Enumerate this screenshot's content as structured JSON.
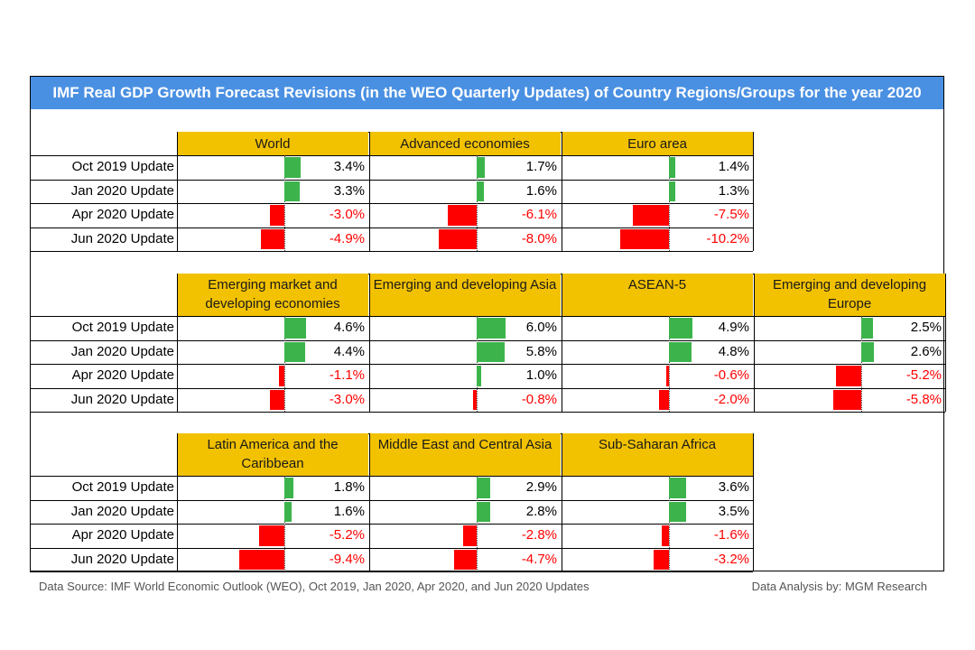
{
  "title": "IMF Real GDP Growth Forecast Revisions (in the WEO Quarterly Updates) of Country Regions/Groups for the year 2020",
  "row_labels": [
    "Oct 2019 Update",
    "Jan 2020 Update",
    "Apr 2020 Update",
    "Jun 2020 Update"
  ],
  "colors": {
    "header": "#f2c100",
    "title_bg": "#4a90e2",
    "positive": "#3cb44b",
    "negative": "#ff0000"
  },
  "chart_data": {
    "type": "table",
    "unit": "%",
    "panels": [
      {
        "blocks": [
          {
            "name": "World",
            "values": [
              3.4,
              3.3,
              -3.0,
              -4.9
            ],
            "labels": [
              "3.4%",
              "3.3%",
              "-3.0%",
              "-4.9%"
            ]
          },
          {
            "name": "Advanced economies",
            "values": [
              1.7,
              1.6,
              -6.1,
              -8.0
            ],
            "labels": [
              "1.7%",
              "1.6%",
              "-6.1%",
              "-8.0%"
            ]
          },
          {
            "name": "Euro area",
            "values": [
              1.4,
              1.3,
              -7.5,
              -10.2
            ],
            "labels": [
              "1.4%",
              "1.3%",
              "-7.5%",
              "-10.2%"
            ]
          }
        ]
      },
      {
        "blocks": [
          {
            "name": "Emerging market and developing economies",
            "values": [
              4.6,
              4.4,
              -1.1,
              -3.0
            ],
            "labels": [
              "4.6%",
              "4.4%",
              "-1.1%",
              "-3.0%"
            ]
          },
          {
            "name": "Emerging and developing Asia",
            "values": [
              6.0,
              5.8,
              1.0,
              -0.8
            ],
            "labels": [
              "6.0%",
              "5.8%",
              "1.0%",
              "-0.8%"
            ]
          },
          {
            "name": "ASEAN-5",
            "values": [
              4.9,
              4.8,
              -0.6,
              -2.0
            ],
            "labels": [
              "4.9%",
              "4.8%",
              "-0.6%",
              "-2.0%"
            ]
          },
          {
            "name": "Emerging and developing Europe",
            "values": [
              2.5,
              2.6,
              -5.2,
              -5.8
            ],
            "labels": [
              "2.5%",
              "2.6%",
              "-5.2%",
              "-5.8%"
            ]
          }
        ]
      },
      {
        "blocks": [
          {
            "name": "Latin America and the Caribbean",
            "values": [
              1.8,
              1.6,
              -5.2,
              -9.4
            ],
            "labels": [
              "1.8%",
              "1.6%",
              "-5.2%",
              "-9.4%"
            ]
          },
          {
            "name": "Middle East and Central Asia",
            "values": [
              2.9,
              2.8,
              -2.8,
              -4.7
            ],
            "labels": [
              "2.9%",
              "2.8%",
              "-2.8%",
              "-4.7%"
            ]
          },
          {
            "name": "Sub-Saharan Africa",
            "values": [
              3.6,
              3.5,
              -1.6,
              -3.2
            ],
            "labels": [
              "3.6%",
              "3.5%",
              "-1.6%",
              "-3.2%"
            ]
          }
        ]
      }
    ]
  },
  "footer": {
    "source": "Data Source: IMF World Economic Outlook (WEO), Oct 2019, Jan 2020, Apr 2020, and Jun 2020 Updates",
    "credit": "Data Analysis by: MGM Research"
  }
}
